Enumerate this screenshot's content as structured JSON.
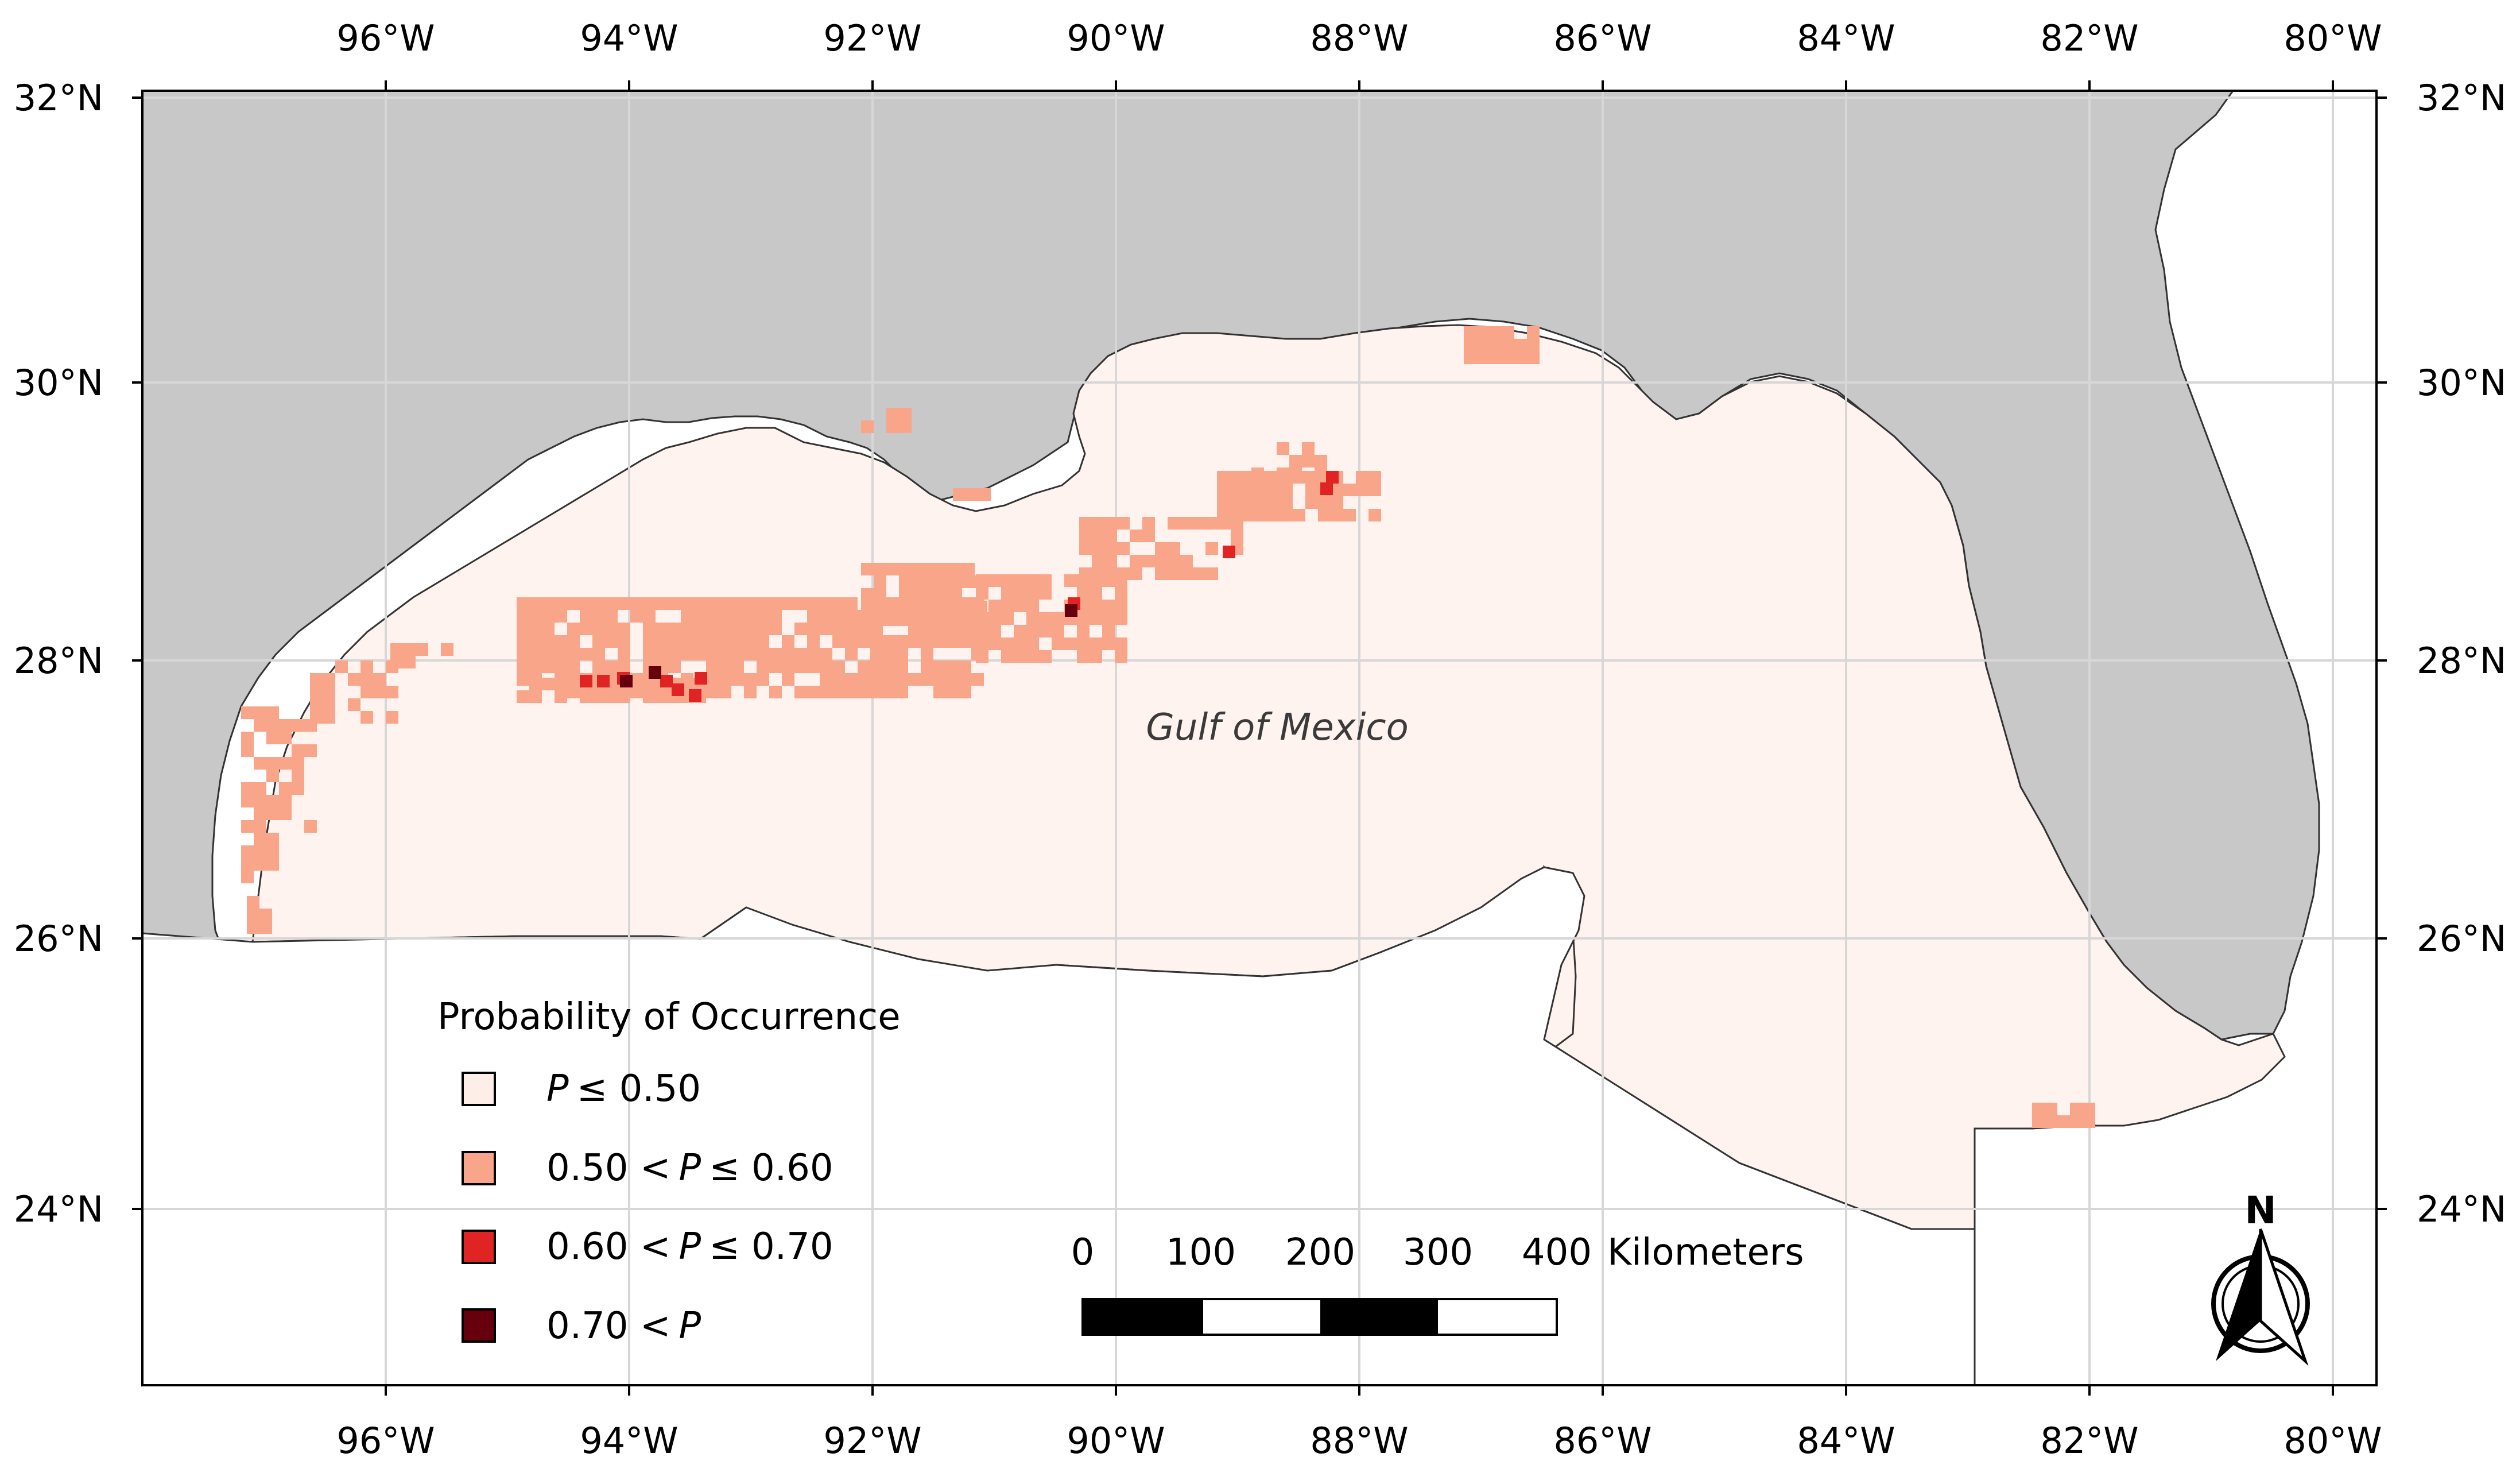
{
  "map": {
    "place_label": "Gulf of Mexico",
    "axes": {
      "bottom_ticks": [
        "96°W",
        "94°W",
        "92°W",
        "90°W",
        "88°W",
        "86°W",
        "84°W",
        "82°W",
        "80°W"
      ],
      "top_ticks": [
        "96°W",
        "94°W",
        "92°W",
        "90°W",
        "88°W",
        "86°W",
        "84°W",
        "82°W",
        "80°W"
      ],
      "left_ticks": [
        "32°N",
        "30°N",
        "28°N",
        "26°N",
        "24°N"
      ],
      "right_ticks": [
        "32°N",
        "30°N",
        "28°N",
        "26°N",
        "24°N"
      ]
    },
    "colors": {
      "land": "#c8c8c8",
      "study_area": "#fff3ef",
      "water": "#ffffff",
      "grid": "#d7d7d7",
      "class_1": "#fdeee8",
      "class_2": "#f8a58a",
      "class_3": "#e02424",
      "class_4": "#67000d"
    }
  },
  "legend": {
    "title": "Probability of Occurrence",
    "items": [
      {
        "symbol": "P",
        "text": "≤ 0.50",
        "color": "#fdeee8",
        "prefix": ""
      },
      {
        "symbol": "P",
        "text": "≤ 0.60",
        "color": "#f8a58a",
        "prefix": "0.50 <"
      },
      {
        "symbol": "P",
        "text": "≤ 0.70",
        "color": "#e02424",
        "prefix": "0.60 <"
      },
      {
        "symbol": "P",
        "text": "",
        "color": "#67000d",
        "prefix": "0.70 <"
      }
    ]
  },
  "scale_bar": {
    "labels": [
      "0",
      "100",
      "200",
      "300",
      "400"
    ],
    "unit": "Kilometers"
  },
  "north_arrow": {
    "label": "N"
  }
}
